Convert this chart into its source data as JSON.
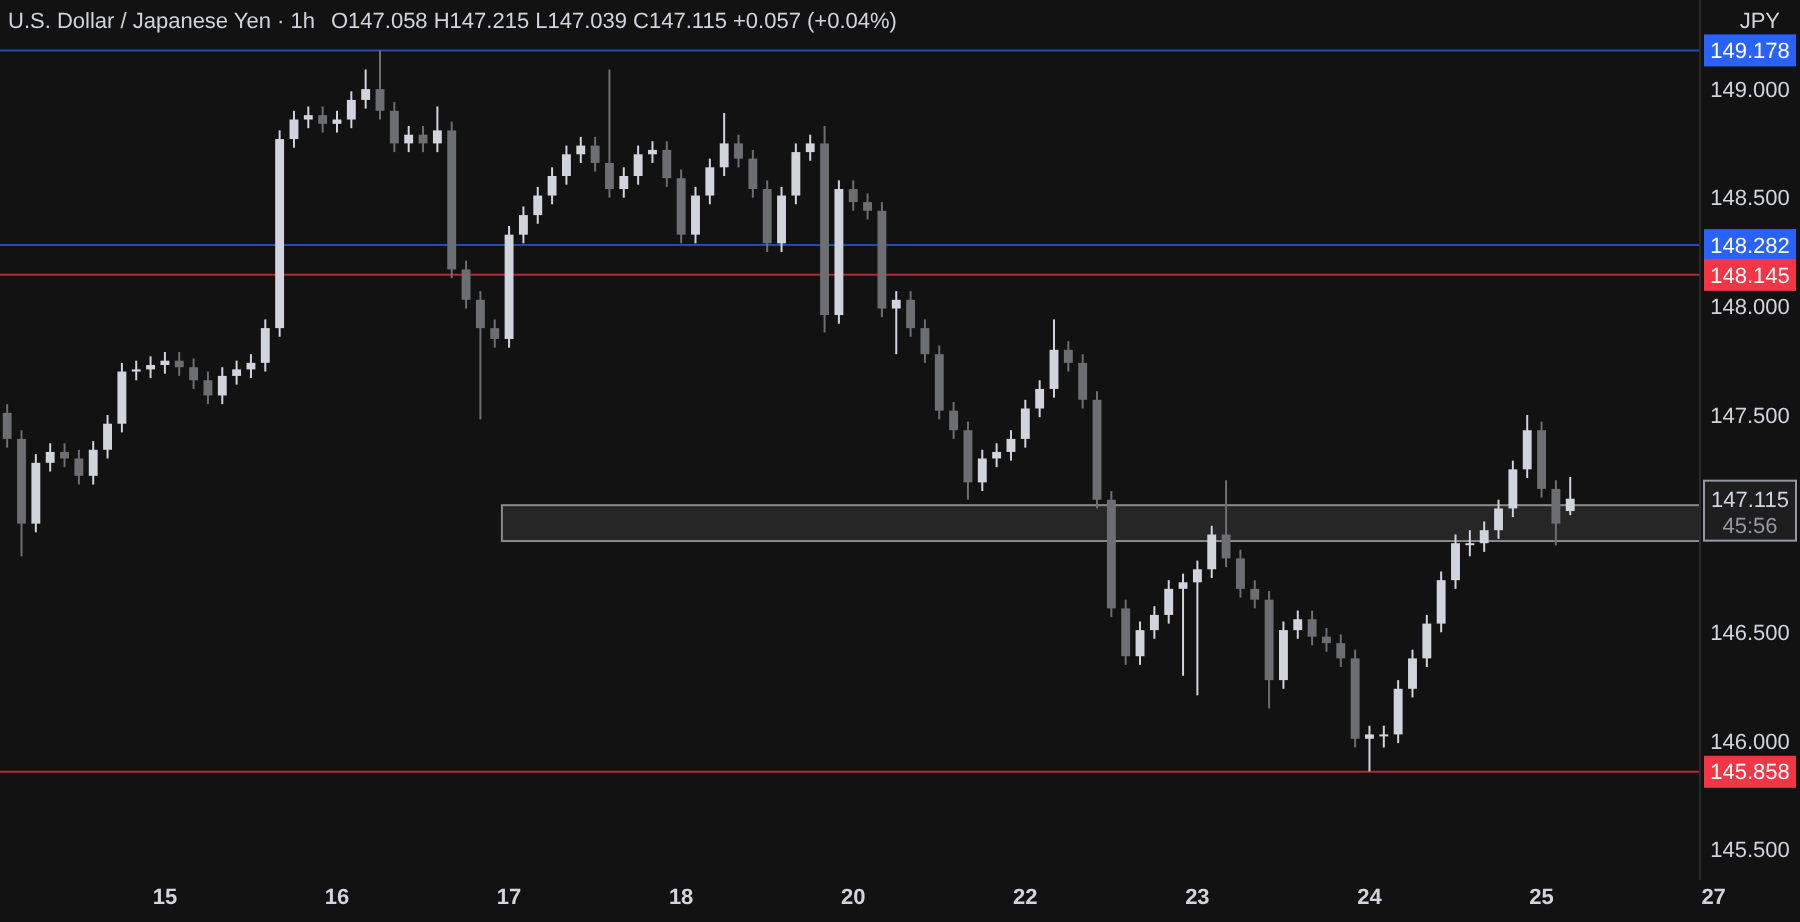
{
  "chart_data": {
    "type": "candlestick",
    "title": "U.S. Dollar / Japanese Yen · 1h",
    "subtitle": "O147.058  H147.215  L147.039  C147.115  +0.057 (+0.04%)",
    "colors": [
      "#6d6e71",
      "#6d6e71",
      "#d1d4dc",
      "#d1d4dc",
      "#6d6e71",
      "#6d6e71",
      "#d1d4dc",
      "#d1d4dc",
      "#d1d4dc",
      "#d1d4dc",
      "#d1d4dc",
      "#d1d4dc",
      "#6d6e71",
      "#6d6e71",
      "#6d6e71",
      "#d1d4dc",
      "#d1d4dc",
      "#d1d4dc",
      "#d1d4dc",
      "#d1d4dc",
      "#d1d4dc",
      "#d1d4dc",
      "#6d6e71",
      "#d1d4dc",
      "#d1d4dc",
      "#d1d4dc",
      "#6d6e71",
      "#6d6e71",
      "#d1d4dc",
      "#6d6e71",
      "#d1d4dc",
      "#6d6e71",
      "#6d6e71",
      "#6d6e71",
      "#6d6e71",
      "#d1d4dc",
      "#d1d4dc",
      "#d1d4dc",
      "#d1d4dc",
      "#d1d4dc",
      "#d1d4dc",
      "#6d6e71",
      "#6d6e71",
      "#d1d4dc",
      "#d1d4dc",
      "#d1d4dc",
      "#6d6e71",
      "#6d6e71",
      "#d1d4dc",
      "#d1d4dc",
      "#d1d4dc",
      "#6d6e71",
      "#6d6e71",
      "#6d6e71",
      "#d1d4dc",
      "#d1d4dc",
      "#d1d4dc",
      "#6d6e71",
      "#d1d4dc",
      "#6d6e71",
      "#6d6e71",
      "#6d6e71",
      "#d1d4dc",
      "#6d6e71",
      "#6d6e71",
      "#6d6e71",
      "#6d6e71",
      "#6d6e71",
      "#d1d4dc",
      "#d1d4dc",
      "#d1d4dc",
      "#d1d4dc",
      "#d1d4dc",
      "#d1d4dc",
      "#6d6e71",
      "#6d6e71",
      "#6d6e71",
      "#6d6e71",
      "#6d6e71",
      "#d1d4dc",
      "#d1d4dc",
      "#d1d4dc",
      "#d1d4dc",
      "#d1d4dc",
      "#d1d4dc",
      "#6d6e71",
      "#6d6e71",
      "#6d6e71",
      "#6d6e71",
      "#d1d4dc",
      "#d1d4dc",
      "#6d6e71",
      "#6d6e71",
      "#6d6e71",
      "#6d6e71",
      "#d1d4dc",
      "#d1d4dc",
      "#d1d4dc",
      "#d1d4dc",
      "#d1d4dc",
      "#d1d4dc",
      "#d1d4dc",
      "#d1d4dc",
      "#d1d4dc",
      "#d1d4dc",
      "#d1d4dc",
      "#d1d4dc",
      "#6d6e71",
      "#6d6e71",
      "#d1d4dc",
      null,
      null,
      null,
      null,
      null,
      null,
      null,
      null,
      null,
      null
    ],
    "categories": [
      null,
      null,
      null,
      null,
      null,
      null,
      null,
      null,
      null,
      null,
      null,
      "15",
      null,
      null,
      null,
      null,
      null,
      null,
      null,
      null,
      null,
      null,
      null,
      "16",
      null,
      null,
      null,
      null,
      null,
      null,
      null,
      null,
      null,
      null,
      null,
      "17",
      null,
      null,
      null,
      null,
      null,
      null,
      null,
      null,
      null,
      null,
      null,
      "18",
      null,
      null,
      null,
      null,
      null,
      null,
      null,
      null,
      null,
      null,
      null,
      "20",
      null,
      null,
      null,
      null,
      null,
      null,
      null,
      null,
      null,
      null,
      null,
      "22",
      null,
      null,
      null,
      null,
      null,
      null,
      null,
      null,
      null,
      null,
      null,
      "23",
      null,
      null,
      null,
      null,
      null,
      null,
      null,
      null,
      null,
      null,
      null,
      "24",
      null,
      null,
      null,
      null,
      null,
      null,
      null,
      null,
      null,
      null,
      null,
      "25",
      null,
      null,
      null,
      null,
      null,
      null,
      null,
      null,
      null,
      null,
      null,
      "27"
    ],
    "ohlc": [
      [
        147.51,
        147.55,
        147.35,
        147.39
      ],
      [
        147.39,
        147.43,
        146.85,
        147.0
      ],
      [
        147.0,
        147.32,
        146.96,
        147.28
      ],
      [
        147.28,
        147.37,
        147.24,
        147.33
      ],
      [
        147.33,
        147.37,
        147.26,
        147.3
      ],
      [
        147.3,
        147.34,
        147.18,
        147.22
      ],
      [
        147.22,
        147.38,
        147.18,
        147.34
      ],
      [
        147.34,
        147.5,
        147.3,
        147.46
      ],
      [
        147.46,
        147.74,
        147.42,
        147.7
      ],
      [
        147.7,
        147.75,
        147.66,
        147.71
      ],
      [
        147.71,
        147.77,
        147.67,
        147.73
      ],
      [
        147.73,
        147.79,
        147.69,
        147.75
      ],
      [
        147.75,
        147.79,
        147.68,
        147.72
      ],
      [
        147.72,
        147.76,
        147.62,
        147.66
      ],
      [
        147.66,
        147.7,
        147.55,
        147.59
      ],
      [
        147.59,
        147.72,
        147.55,
        147.68
      ],
      [
        147.68,
        147.75,
        147.64,
        147.71
      ],
      [
        147.71,
        147.78,
        147.67,
        147.74
      ],
      [
        147.74,
        147.94,
        147.7,
        147.9
      ],
      [
        147.9,
        148.81,
        147.86,
        148.77
      ],
      [
        148.77,
        148.9,
        148.73,
        148.86
      ],
      [
        148.86,
        148.92,
        148.82,
        148.88
      ],
      [
        148.88,
        148.92,
        148.8,
        148.84
      ],
      [
        148.84,
        148.9,
        148.8,
        148.86
      ],
      [
        148.86,
        148.99,
        148.82,
        148.95
      ],
      [
        148.95,
        149.09,
        148.91,
        149.0
      ],
      [
        149.0,
        149.178,
        148.86,
        148.9
      ],
      [
        148.9,
        148.94,
        148.71,
        148.75
      ],
      [
        148.75,
        148.83,
        148.71,
        148.79
      ],
      [
        148.79,
        148.83,
        148.71,
        148.75
      ],
      [
        148.75,
        148.92,
        148.71,
        148.81
      ],
      [
        148.81,
        148.85,
        148.13,
        148.17
      ],
      [
        148.17,
        148.21,
        147.99,
        148.03
      ],
      [
        148.03,
        148.07,
        147.48,
        147.9
      ],
      [
        147.9,
        147.94,
        147.81,
        147.85
      ],
      [
        147.85,
        148.37,
        147.81,
        148.33
      ],
      [
        148.33,
        148.46,
        148.29,
        148.42
      ],
      [
        148.42,
        148.55,
        148.38,
        148.51
      ],
      [
        148.51,
        148.64,
        148.47,
        148.6
      ],
      [
        148.6,
        148.74,
        148.56,
        148.7
      ],
      [
        148.7,
        148.78,
        148.66,
        148.74
      ],
      [
        148.74,
        148.78,
        148.62,
        148.66
      ],
      [
        148.66,
        149.09,
        148.5,
        148.54
      ],
      [
        148.54,
        148.64,
        148.5,
        148.6
      ],
      [
        148.6,
        148.74,
        148.56,
        148.7
      ],
      [
        148.7,
        148.76,
        148.66,
        148.72
      ],
      [
        148.72,
        148.76,
        148.55,
        148.59
      ],
      [
        148.59,
        148.63,
        148.29,
        148.33
      ],
      [
        148.33,
        148.55,
        148.29,
        148.51
      ],
      [
        148.51,
        148.68,
        148.47,
        148.64
      ],
      [
        148.64,
        148.89,
        148.6,
        148.75
      ],
      [
        148.75,
        148.79,
        148.64,
        148.68
      ],
      [
        148.68,
        148.72,
        148.5,
        148.54
      ],
      [
        148.54,
        148.58,
        148.25,
        148.29
      ],
      [
        148.29,
        148.55,
        148.25,
        148.51
      ],
      [
        148.51,
        148.75,
        148.47,
        148.71
      ],
      [
        148.71,
        148.79,
        148.67,
        148.75
      ],
      [
        148.75,
        148.83,
        147.88,
        147.96
      ],
      [
        147.96,
        148.58,
        147.92,
        148.54
      ],
      [
        148.54,
        148.58,
        148.44,
        148.48
      ],
      [
        148.48,
        148.52,
        148.4,
        148.44
      ],
      [
        148.44,
        148.48,
        147.95,
        147.99
      ],
      [
        147.99,
        148.07,
        147.78,
        148.03
      ],
      [
        148.03,
        148.07,
        147.86,
        147.9
      ],
      [
        147.9,
        147.94,
        147.74,
        147.78
      ],
      [
        147.78,
        147.82,
        147.48,
        147.52
      ],
      [
        147.52,
        147.56,
        147.39,
        147.43
      ],
      [
        147.43,
        147.47,
        147.11,
        147.19
      ],
      [
        147.19,
        147.34,
        147.15,
        147.3
      ],
      [
        147.3,
        147.37,
        147.26,
        147.33
      ],
      [
        147.33,
        147.43,
        147.29,
        147.39
      ],
      [
        147.39,
        147.57,
        147.35,
        147.53
      ],
      [
        147.53,
        147.66,
        147.49,
        147.62
      ],
      [
        147.62,
        147.94,
        147.58,
        147.8
      ],
      [
        147.8,
        147.84,
        147.7,
        147.74
      ],
      [
        147.74,
        147.78,
        147.53,
        147.57
      ],
      [
        147.57,
        147.61,
        147.07,
        147.11
      ],
      [
        147.11,
        147.15,
        146.57,
        146.61
      ],
      [
        146.61,
        146.65,
        146.35,
        146.39
      ],
      [
        146.39,
        146.55,
        146.35,
        146.51
      ],
      [
        146.51,
        146.62,
        146.47,
        146.58
      ],
      [
        146.58,
        146.74,
        146.54,
        146.7
      ],
      [
        146.7,
        146.77,
        146.3,
        146.73
      ],
      [
        146.73,
        146.83,
        146.21,
        146.79
      ],
      [
        146.79,
        146.99,
        146.75,
        146.95
      ],
      [
        146.95,
        147.2,
        146.8,
        146.84
      ],
      [
        146.84,
        146.88,
        146.66,
        146.7
      ],
      [
        146.7,
        146.74,
        146.61,
        146.65
      ],
      [
        146.65,
        146.69,
        146.15,
        146.28
      ],
      [
        146.28,
        146.55,
        146.24,
        146.51
      ],
      [
        146.51,
        146.6,
        146.47,
        146.56
      ],
      [
        146.56,
        146.6,
        146.44,
        146.48
      ],
      [
        146.48,
        146.52,
        146.41,
        146.45
      ],
      [
        146.45,
        146.49,
        146.34,
        146.38
      ],
      [
        146.38,
        146.42,
        145.97,
        146.01
      ],
      [
        146.01,
        146.07,
        145.86,
        146.03
      ],
      [
        146.03,
        146.07,
        145.97,
        146.03
      ],
      [
        146.03,
        146.28,
        145.99,
        146.24
      ],
      [
        146.24,
        146.42,
        146.2,
        146.38
      ],
      [
        146.38,
        146.58,
        146.34,
        146.54
      ],
      [
        146.54,
        146.78,
        146.5,
        146.74
      ],
      [
        146.74,
        146.95,
        146.7,
        146.91
      ],
      [
        146.91,
        146.97,
        146.85,
        146.91
      ],
      [
        146.91,
        147.01,
        146.87,
        146.97
      ],
      [
        146.97,
        147.11,
        146.93,
        147.07
      ],
      [
        147.07,
        147.29,
        147.03,
        147.25
      ],
      [
        147.25,
        147.5,
        147.21,
        147.43
      ],
      [
        147.43,
        147.47,
        147.12,
        147.16
      ],
      [
        147.16,
        147.2,
        146.9,
        147.0
      ],
      [
        147.058,
        147.215,
        147.039,
        147.115
      ],
      null,
      null,
      null,
      null,
      null,
      null,
      null,
      null,
      null,
      null
    ],
    "ylim": [
      145.36,
      149.41
    ],
    "yticks": [
      {
        "value": 145.5,
        "label": "145.500"
      },
      {
        "value": 146,
        "label": "146.000"
      },
      {
        "value": 146.5,
        "label": "146.500"
      },
      {
        "value": 147.5,
        "label": "147.500"
      },
      {
        "value": 148,
        "label": "148.000"
      },
      {
        "value": 148.5,
        "label": "148.500"
      },
      {
        "value": 149,
        "label": "149.000"
      }
    ],
    "ref_lines": [
      {
        "axis": "y",
        "value": 149.178,
        "label": "149.178",
        "color": "#2962ff"
      },
      {
        "axis": "y",
        "value": 148.282,
        "label": "148.282",
        "color": "#2962ff"
      },
      {
        "axis": "y",
        "value": 148.145,
        "label": "148.145",
        "color": "#f23645"
      },
      {
        "axis": "y",
        "value": 145.858,
        "label": "145.858",
        "color": "#f23645"
      }
    ],
    "bands": [
      {
        "axis": "y",
        "from": 146.92,
        "to": 147.085,
        "color": "#262626"
      }
    ],
    "annotations": [
      "JPY",
      "147.115",
      "45:56"
    ]
  }
}
